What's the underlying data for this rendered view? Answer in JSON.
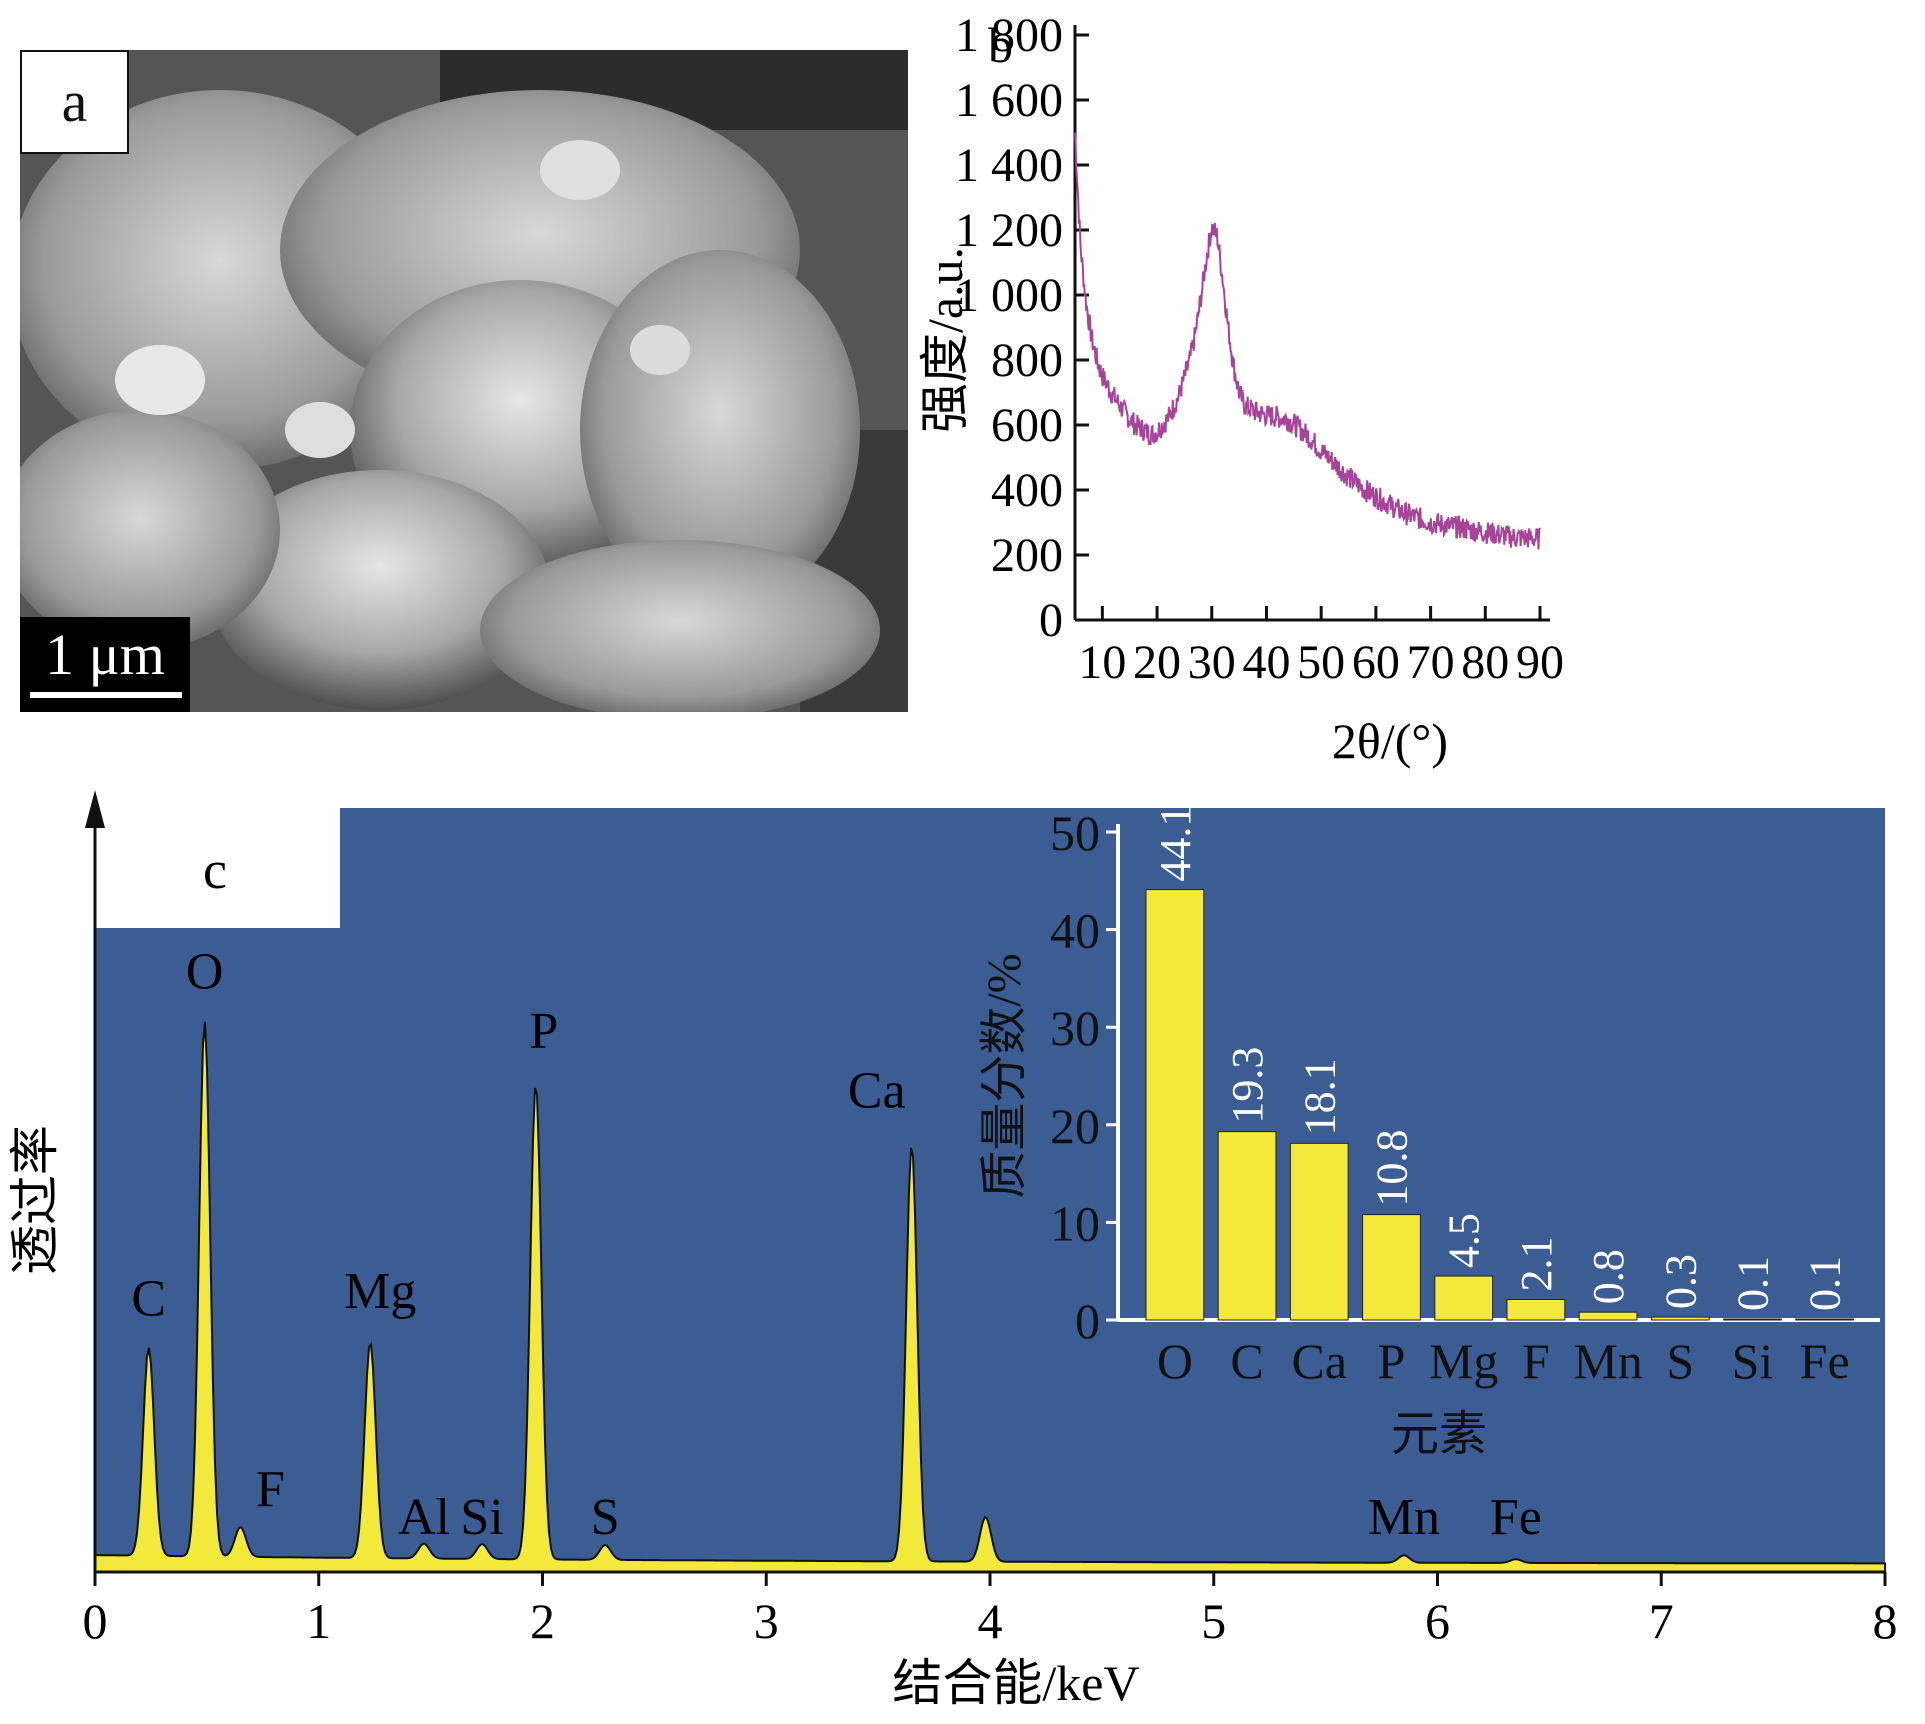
{
  "panel_a": {
    "label": "a",
    "scale_bar": "1 μm"
  },
  "chart_data": [
    {
      "panel": "b",
      "type": "line",
      "xlabel": "2θ/(°)",
      "ylabel": "强度/a.u.",
      "xlim": [
        5,
        90
      ],
      "ylim": [
        0,
        1800
      ],
      "xticks": [
        10,
        20,
        30,
        40,
        50,
        60,
        70,
        80,
        90
      ],
      "xtick_labels": [
        "10",
        "20",
        "30",
        "40",
        "50",
        "60",
        "70",
        "80",
        "90"
      ],
      "yticks": [
        0,
        200,
        400,
        600,
        800,
        1000,
        1200,
        1400,
        1600,
        1800
      ],
      "ytick_labels": [
        "0",
        "200",
        "400",
        "600",
        "800",
        "1 000",
        "1 200",
        "1 400",
        "1 600",
        "1 800"
      ],
      "color": "#a8439a",
      "series": [
        {
          "x": [
            5,
            6,
            7,
            8,
            9,
            10,
            12,
            14,
            16,
            18,
            19,
            20,
            22,
            24,
            26,
            27,
            28,
            29,
            30,
            31,
            32,
            33,
            34,
            35,
            36,
            38,
            40,
            42,
            44,
            46,
            48,
            50,
            52,
            55,
            58,
            60,
            65,
            70,
            75,
            80,
            85,
            90
          ],
          "y": [
            1500,
            1150,
            980,
            870,
            800,
            750,
            690,
            640,
            600,
            580,
            570,
            580,
            620,
            690,
            800,
            880,
            990,
            1110,
            1210,
            1180,
            1050,
            900,
            780,
            700,
            660,
            640,
            630,
            625,
            615,
            590,
            560,
            520,
            490,
            440,
            400,
            380,
            330,
            300,
            285,
            270,
            255,
            250
          ]
        }
      ]
    },
    {
      "panel": "c",
      "type": "line",
      "xlabel": "结合能/keV",
      "ylabel": "透过率",
      "xlim": [
        0,
        8
      ],
      "xticks": [
        0,
        1,
        2,
        3,
        4,
        5,
        6,
        7,
        8
      ],
      "xtick_labels": [
        "0",
        "1",
        "2",
        "3",
        "4",
        "5",
        "6",
        "7",
        "8"
      ],
      "background": "#3b5d93",
      "fill_color": "#f2e93a",
      "peaks": [
        {
          "element": "C",
          "energy": 0.24,
          "height": 0.28
        },
        {
          "element": "O",
          "energy": 0.49,
          "height": 0.72
        },
        {
          "element": "F",
          "energy": 0.65,
          "height": 0.04
        },
        {
          "element": "Mg",
          "energy": 1.23,
          "height": 0.29
        },
        {
          "element": "Al",
          "energy": 1.47,
          "height": 0.02
        },
        {
          "element": "Si",
          "energy": 1.73,
          "height": 0.02
        },
        {
          "element": "P",
          "energy": 1.97,
          "height": 0.64
        },
        {
          "element": "S",
          "energy": 2.28,
          "height": 0.02
        },
        {
          "element": "Ca",
          "energy": 3.65,
          "height": 0.56
        },
        {
          "element": "",
          "energy": 3.98,
          "height": 0.06
        },
        {
          "element": "Mn",
          "energy": 5.85,
          "height": 0.01
        },
        {
          "element": "Fe",
          "energy": 6.35,
          "height": 0.005
        }
      ]
    },
    {
      "panel": "c-inset",
      "type": "bar",
      "xlabel": "元素",
      "ylabel": "质量分数/%",
      "ylim": [
        0,
        50
      ],
      "yticks": [
        0,
        10,
        20,
        30,
        40,
        50
      ],
      "ytick_labels": [
        "0",
        "10",
        "20",
        "30",
        "40",
        "50"
      ],
      "categories": [
        "O",
        "C",
        "Ca",
        "P",
        "Mg",
        "F",
        "Mn",
        "S",
        "Si",
        "Fe"
      ],
      "values": [
        44.1,
        19.3,
        18.1,
        10.8,
        4.5,
        2.1,
        0.8,
        0.3,
        0.1,
        0.1
      ],
      "value_labels": [
        "44.1",
        "19.3",
        "18.1",
        "10.8",
        "4.5",
        "2.1",
        "0.8",
        "0.3",
        "0.1",
        "0.1"
      ],
      "color": "#f2e93a"
    }
  ],
  "panel_b": {
    "label": "b"
  },
  "panel_c": {
    "label": "c"
  }
}
